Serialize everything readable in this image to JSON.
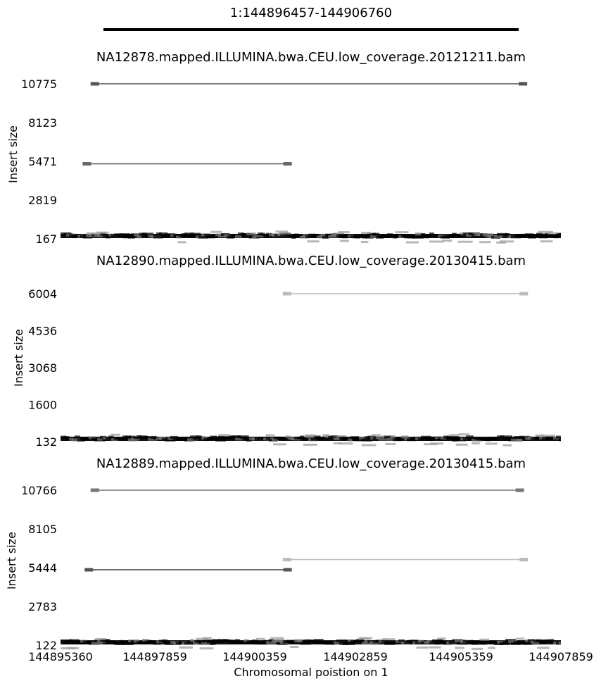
{
  "region_title": "1:144896457-144906760",
  "region": {
    "start": 144896457,
    "end": 144906760
  },
  "x_axis": {
    "label": "Chromosomal poistion on 1",
    "range": [
      144895360,
      144907859
    ],
    "ticks": [
      "144895360",
      "144897859",
      "144900359",
      "144902859",
      "144905359",
      "144907859"
    ]
  },
  "chart_data": [
    {
      "type": "scatter",
      "title": "NA12878.mapped.ILLUMINA.bwa.CEU.low_coverage.20121211.bam",
      "ylabel": "Insert size",
      "ylim": [
        167,
        10775
      ],
      "yticks": [
        "10775",
        "8123",
        "5471",
        "2819",
        "167"
      ],
      "discordant_pairs": [
        {
          "start": 144896200,
          "end": 144906930,
          "insert_size": 10775,
          "shade": "#555555"
        },
        {
          "start": 144896000,
          "end": 144901050,
          "insert_size": 5300,
          "shade": "#666666"
        }
      ],
      "baseline_insert_size": 167
    },
    {
      "type": "scatter",
      "title": "NA12890.mapped.ILLUMINA.bwa.CEU.low_coverage.20130415.bam",
      "ylabel": "Insert size",
      "ylim": [
        132,
        6004
      ],
      "yticks": [
        "6004",
        "4536",
        "3068",
        "1600",
        "132"
      ],
      "discordant_pairs": [
        {
          "start": 144901000,
          "end": 144906950,
          "insert_size": 6004,
          "shade": "#bbbbbb"
        }
      ],
      "baseline_insert_size": 132
    },
    {
      "type": "scatter",
      "title": "NA12889.mapped.ILLUMINA.bwa.CEU.low_coverage.20130415.bam",
      "ylabel": "Insert size",
      "ylim": [
        122,
        10766
      ],
      "yticks": [
        "10766",
        "8105",
        "5444",
        "2783",
        "122"
      ],
      "discordant_pairs": [
        {
          "start": 144896200,
          "end": 144906850,
          "insert_size": 10766,
          "shade": "#777777"
        },
        {
          "start": 144901000,
          "end": 144906950,
          "insert_size": 6000,
          "shade": "#bbbbbb"
        },
        {
          "start": 144896050,
          "end": 144901050,
          "insert_size": 5300,
          "shade": "#555555"
        }
      ],
      "baseline_insert_size": 122
    }
  ]
}
